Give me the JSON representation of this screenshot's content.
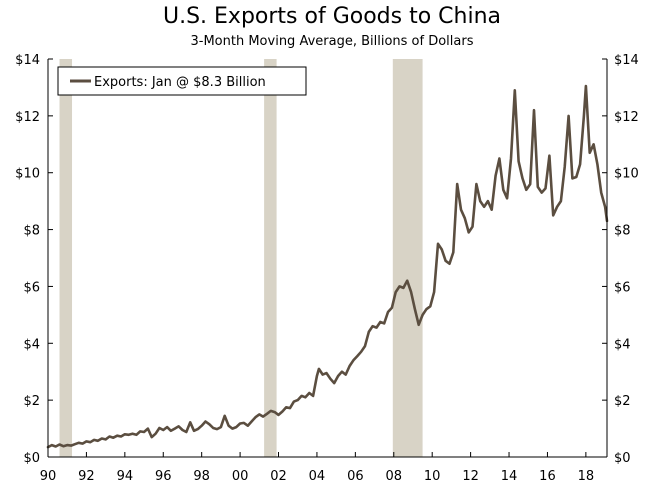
{
  "chart_data": {
    "type": "line",
    "title": "U.S. Exports of Goods to China",
    "subtitle": "3-Month Moving Average, Billions of Dollars",
    "xlabel": "",
    "ylabel": "",
    "xlim": [
      1990,
      2019.1
    ],
    "ylim": [
      0,
      14
    ],
    "x_tick_values": [
      1990,
      1992,
      1994,
      1996,
      1998,
      2000,
      2002,
      2004,
      2006,
      2008,
      2010,
      2012,
      2014,
      2016,
      2018
    ],
    "x_tick_labels": [
      "90",
      "92",
      "94",
      "96",
      "98",
      "00",
      "02",
      "04",
      "06",
      "08",
      "10",
      "12",
      "14",
      "16",
      "18"
    ],
    "y_tick_values": [
      0,
      2,
      4,
      6,
      8,
      10,
      12,
      14
    ],
    "y_tick_labels": [
      "$0",
      "$2",
      "$4",
      "$6",
      "$8",
      "$10",
      "$12",
      "$14"
    ],
    "y_tick_labels_right": [
      "$0",
      "$2",
      "$4",
      "$6",
      "$8",
      "$10",
      "$12",
      "$14"
    ],
    "grid": false,
    "recession_bands": [
      [
        1990.6,
        1991.25
      ],
      [
        2001.25,
        2001.9
      ],
      [
        2007.95,
        2009.5
      ]
    ],
    "legend": {
      "position": "top-left",
      "label": "Exports: Jan @ $8.3 Billion"
    },
    "colors": {
      "line": "#5b4e40",
      "recession": "#d8d3c6",
      "axis": "#000000"
    },
    "series": [
      {
        "name": "Exports",
        "points": [
          [
            1990.0,
            0.35
          ],
          [
            1990.2,
            0.42
          ],
          [
            1990.4,
            0.37
          ],
          [
            1990.6,
            0.44
          ],
          [
            1990.8,
            0.38
          ],
          [
            1991.0,
            0.42
          ],
          [
            1991.2,
            0.4
          ],
          [
            1991.4,
            0.45
          ],
          [
            1991.6,
            0.5
          ],
          [
            1991.8,
            0.47
          ],
          [
            1992.0,
            0.55
          ],
          [
            1992.2,
            0.52
          ],
          [
            1992.4,
            0.6
          ],
          [
            1992.6,
            0.57
          ],
          [
            1992.8,
            0.65
          ],
          [
            1993.0,
            0.62
          ],
          [
            1993.2,
            0.72
          ],
          [
            1993.4,
            0.68
          ],
          [
            1993.6,
            0.75
          ],
          [
            1993.8,
            0.72
          ],
          [
            1994.0,
            0.8
          ],
          [
            1994.2,
            0.78
          ],
          [
            1994.4,
            0.82
          ],
          [
            1994.6,
            0.78
          ],
          [
            1994.8,
            0.9
          ],
          [
            1995.0,
            0.88
          ],
          [
            1995.2,
            1.0
          ],
          [
            1995.4,
            0.7
          ],
          [
            1995.6,
            0.82
          ],
          [
            1995.8,
            1.02
          ],
          [
            1996.0,
            0.95
          ],
          [
            1996.2,
            1.05
          ],
          [
            1996.4,
            0.92
          ],
          [
            1996.6,
            1.0
          ],
          [
            1996.8,
            1.08
          ],
          [
            1997.0,
            0.95
          ],
          [
            1997.2,
            0.88
          ],
          [
            1997.4,
            1.22
          ],
          [
            1997.6,
            0.92
          ],
          [
            1997.8,
            0.98
          ],
          [
            1998.0,
            1.1
          ],
          [
            1998.2,
            1.25
          ],
          [
            1998.4,
            1.15
          ],
          [
            1998.6,
            1.02
          ],
          [
            1998.8,
            0.98
          ],
          [
            1999.0,
            1.05
          ],
          [
            1999.2,
            1.45
          ],
          [
            1999.4,
            1.1
          ],
          [
            1999.6,
            1.0
          ],
          [
            1999.8,
            1.05
          ],
          [
            2000.0,
            1.18
          ],
          [
            2000.2,
            1.2
          ],
          [
            2000.4,
            1.1
          ],
          [
            2000.6,
            1.25
          ],
          [
            2000.8,
            1.4
          ],
          [
            2001.0,
            1.5
          ],
          [
            2001.2,
            1.42
          ],
          [
            2001.4,
            1.52
          ],
          [
            2001.6,
            1.62
          ],
          [
            2001.8,
            1.58
          ],
          [
            2002.0,
            1.48
          ],
          [
            2002.2,
            1.6
          ],
          [
            2002.4,
            1.75
          ],
          [
            2002.6,
            1.72
          ],
          [
            2002.8,
            1.95
          ],
          [
            2003.0,
            2.0
          ],
          [
            2003.2,
            2.15
          ],
          [
            2003.4,
            2.1
          ],
          [
            2003.6,
            2.25
          ],
          [
            2003.8,
            2.15
          ],
          [
            2004.0,
            2.85
          ],
          [
            2004.1,
            3.1
          ],
          [
            2004.3,
            2.9
          ],
          [
            2004.5,
            2.95
          ],
          [
            2004.7,
            2.75
          ],
          [
            2004.9,
            2.6
          ],
          [
            2005.1,
            2.85
          ],
          [
            2005.3,
            3.0
          ],
          [
            2005.5,
            2.9
          ],
          [
            2005.7,
            3.2
          ],
          [
            2005.9,
            3.4
          ],
          [
            2006.1,
            3.55
          ],
          [
            2006.3,
            3.7
          ],
          [
            2006.5,
            3.9
          ],
          [
            2006.7,
            4.4
          ],
          [
            2006.9,
            4.6
          ],
          [
            2007.1,
            4.55
          ],
          [
            2007.3,
            4.75
          ],
          [
            2007.5,
            4.7
          ],
          [
            2007.7,
            5.1
          ],
          [
            2007.9,
            5.25
          ],
          [
            2008.1,
            5.8
          ],
          [
            2008.3,
            6.0
          ],
          [
            2008.5,
            5.95
          ],
          [
            2008.7,
            6.2
          ],
          [
            2008.9,
            5.8
          ],
          [
            2009.1,
            5.2
          ],
          [
            2009.3,
            4.65
          ],
          [
            2009.5,
            5.0
          ],
          [
            2009.7,
            5.2
          ],
          [
            2009.9,
            5.3
          ],
          [
            2010.1,
            5.8
          ],
          [
            2010.3,
            7.5
          ],
          [
            2010.5,
            7.3
          ],
          [
            2010.7,
            6.9
          ],
          [
            2010.9,
            6.8
          ],
          [
            2011.1,
            7.2
          ],
          [
            2011.3,
            9.6
          ],
          [
            2011.5,
            8.7
          ],
          [
            2011.7,
            8.4
          ],
          [
            2011.9,
            7.9
          ],
          [
            2012.1,
            8.1
          ],
          [
            2012.3,
            9.6
          ],
          [
            2012.5,
            9.0
          ],
          [
            2012.7,
            8.8
          ],
          [
            2012.9,
            9.0
          ],
          [
            2013.1,
            8.7
          ],
          [
            2013.3,
            9.9
          ],
          [
            2013.5,
            10.5
          ],
          [
            2013.7,
            9.4
          ],
          [
            2013.9,
            9.1
          ],
          [
            2014.1,
            10.5
          ],
          [
            2014.3,
            12.9
          ],
          [
            2014.5,
            10.4
          ],
          [
            2014.7,
            9.8
          ],
          [
            2014.9,
            9.4
          ],
          [
            2015.1,
            9.6
          ],
          [
            2015.3,
            12.2
          ],
          [
            2015.5,
            9.5
          ],
          [
            2015.7,
            9.3
          ],
          [
            2015.9,
            9.45
          ],
          [
            2016.1,
            10.6
          ],
          [
            2016.3,
            8.5
          ],
          [
            2016.5,
            8.8
          ],
          [
            2016.7,
            9.0
          ],
          [
            2016.9,
            10.2
          ],
          [
            2017.1,
            12.0
          ],
          [
            2017.3,
            9.8
          ],
          [
            2017.5,
            9.85
          ],
          [
            2017.7,
            10.3
          ],
          [
            2017.9,
            12.0
          ],
          [
            2018.0,
            13.05
          ],
          [
            2018.2,
            10.7
          ],
          [
            2018.4,
            11.0
          ],
          [
            2018.6,
            10.3
          ],
          [
            2018.8,
            9.3
          ],
          [
            2019.0,
            8.8
          ],
          [
            2019.1,
            8.3
          ]
        ]
      }
    ]
  }
}
